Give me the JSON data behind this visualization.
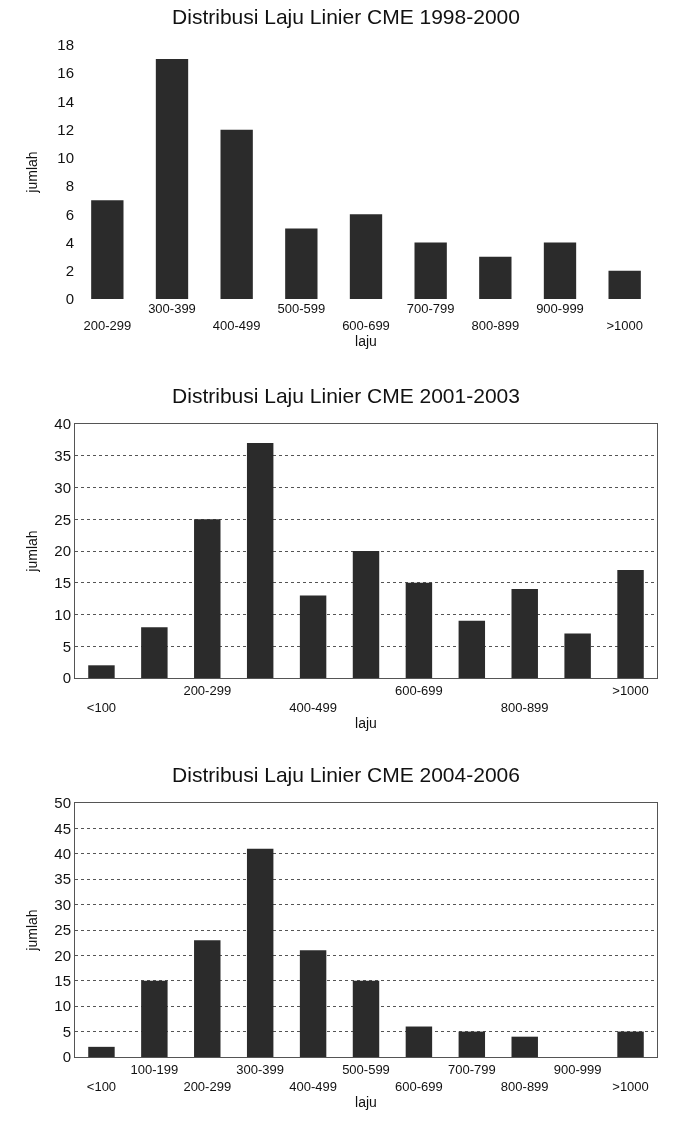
{
  "chart_data": [
    {
      "type": "bar",
      "title": "Distribusi Laju Linier CME 1998-2000",
      "xlabel": "laju",
      "ylabel": "jumlah",
      "categories": [
        "200-299",
        "300-399",
        "400-499",
        "500-599",
        "600-699",
        "700-799",
        "800-899",
        "900-999",
        ">1000"
      ],
      "values": [
        7,
        17,
        12,
        5,
        6,
        4,
        3,
        4,
        2
      ],
      "color": "#2b2b2b",
      "ylim": [
        0,
        18
      ],
      "yticks": [
        0,
        2,
        4,
        6,
        8,
        10,
        12,
        14,
        16,
        18
      ],
      "grid": false
    },
    {
      "type": "bar",
      "title": "Distribusi Laju Linier CME 2001-2003",
      "xlabel": "laju",
      "ylabel": "jumlah",
      "categories": [
        "<100",
        null,
        "200-299",
        null,
        "400-499",
        null,
        "600-699",
        null,
        "800-899",
        null,
        ">1000"
      ],
      "values": [
        2,
        8,
        25,
        37,
        13,
        20,
        15,
        9,
        14,
        7,
        17
      ],
      "color": "#2b2b2b",
      "ylim": [
        0,
        40
      ],
      "yticks": [
        0,
        5,
        10,
        15,
        20,
        25,
        30,
        35,
        40
      ],
      "grid": "y",
      "line_style": "dotted"
    },
    {
      "type": "bar",
      "title": "Distribusi Laju Linier CME 2004-2006",
      "xlabel": "laju",
      "ylabel": "jumlah",
      "categories": [
        "<100",
        "100-199",
        "200-299",
        "300-399",
        "400-499",
        "500-599",
        "600-699",
        "700-799",
        "800-899",
        "900-999",
        ">1000"
      ],
      "values": [
        2,
        15,
        23,
        41,
        21,
        15,
        6,
        5,
        4,
        0,
        5
      ],
      "color": "#2b2b2b",
      "ylim": [
        0,
        50
      ],
      "yticks": [
        0,
        5,
        10,
        15,
        20,
        25,
        30,
        35,
        40,
        45,
        50
      ],
      "grid": "y",
      "line_style": "dotted"
    }
  ]
}
